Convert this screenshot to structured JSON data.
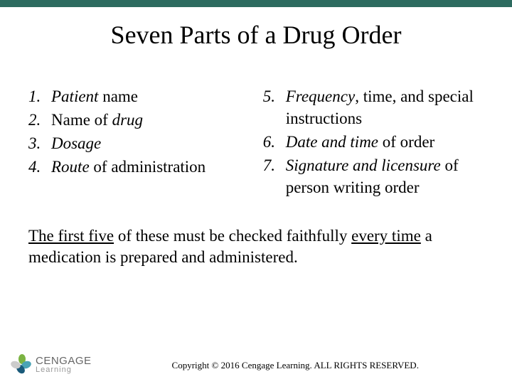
{
  "accent_color": "#2d6b5f",
  "title": "Seven Parts of a Drug Order",
  "left_items": [
    {
      "num": "1.",
      "html": "<span class='em'>Patient</span> name"
    },
    {
      "num": "2.",
      "html": "Name of <span class='em'>drug</span>"
    },
    {
      "num": "3.",
      "html": "<span class='em'>Dosage</span>"
    },
    {
      "num": "4.",
      "html": "<span class='em'>Route</span> of administration"
    }
  ],
  "right_items": [
    {
      "num": "5.",
      "html": "<span class='em'>Frequency</span>, time, and special instructions"
    },
    {
      "num": "6.",
      "html": "<span class='em'>Date and time</span> of order"
    },
    {
      "num": "7.",
      "html": "<span class='em'>Signature and licensure</span> of person writing order"
    }
  ],
  "note_html": "<span class='u'>The first five</span> of these must be checked faithfully <span class='u'>every time</span> a medication is prepared and administered.",
  "logo": {
    "brand": "CENGAGE",
    "sub": "Learning"
  },
  "copyright": "Copyright © 2016 Cengage Learning. ALL RIGHTS RESERVED."
}
